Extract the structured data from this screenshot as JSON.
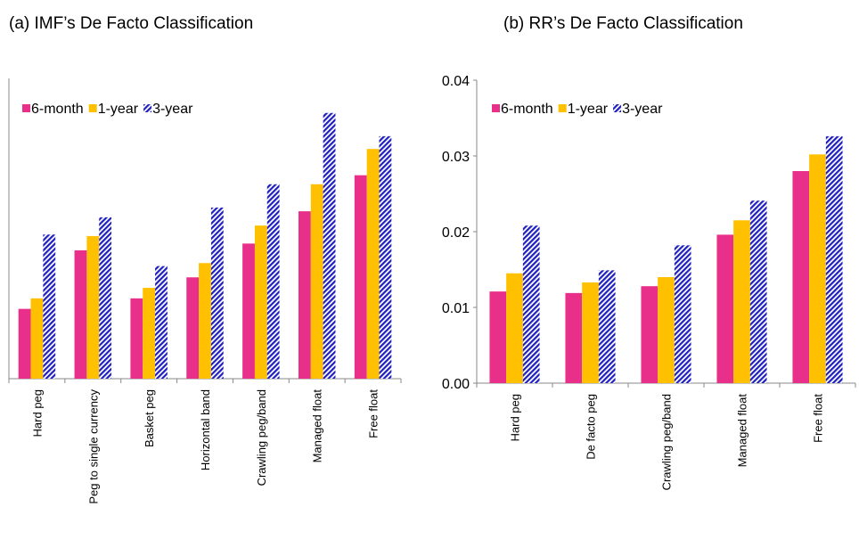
{
  "chart_data": [
    {
      "type": "bar",
      "title": "(a)    IMF’s De Facto Classification",
      "categories": [
        "Hard peg",
        "Peg to single currency",
        "Basket peg",
        "Horizontal band",
        "Crawling peg/band",
        "Managed float",
        "Free float"
      ],
      "series": [
        {
          "name": "6-month",
          "color": "#e8308a",
          "values": [
            0.0093,
            0.0171,
            0.0107,
            0.0135,
            0.018,
            0.0223,
            0.0271
          ]
        },
        {
          "name": "1-year",
          "color": "#ffc000",
          "values": [
            0.0107,
            0.019,
            0.0121,
            0.0154,
            0.0204,
            0.0259,
            0.0306
          ]
        },
        {
          "name": "3-year",
          "color": "#1f1fbf",
          "hatch": true,
          "values": [
            0.0192,
            0.0215,
            0.015,
            0.0228,
            0.0259,
            0.0354,
            0.0323
          ]
        }
      ],
      "ylim": [
        0,
        0.04
      ]
    },
    {
      "type": "bar",
      "title": "(b)  RR’s De Facto Classification",
      "categories": [
        "Hard peg",
        "De facto peg",
        "Crawling peg/band",
        "Managed float",
        "Free float"
      ],
      "series": [
        {
          "name": "6-month",
          "color": "#e8308a",
          "values": [
            0.0121,
            0.0119,
            0.0128,
            0.0196,
            0.028
          ]
        },
        {
          "name": "1-year",
          "color": "#ffc000",
          "values": [
            0.0145,
            0.0133,
            0.014,
            0.0215,
            0.0302
          ]
        },
        {
          "name": "3-year",
          "color": "#1f1fbf",
          "hatch": true,
          "values": [
            0.0208,
            0.0149,
            0.0182,
            0.0241,
            0.0326
          ]
        }
      ],
      "ylim": [
        0,
        0.04
      ],
      "yticks": [
        {
          "value": 0,
          "label": "0.00"
        },
        0.01,
        0.02,
        0.03,
        0.04
      ]
    }
  ]
}
